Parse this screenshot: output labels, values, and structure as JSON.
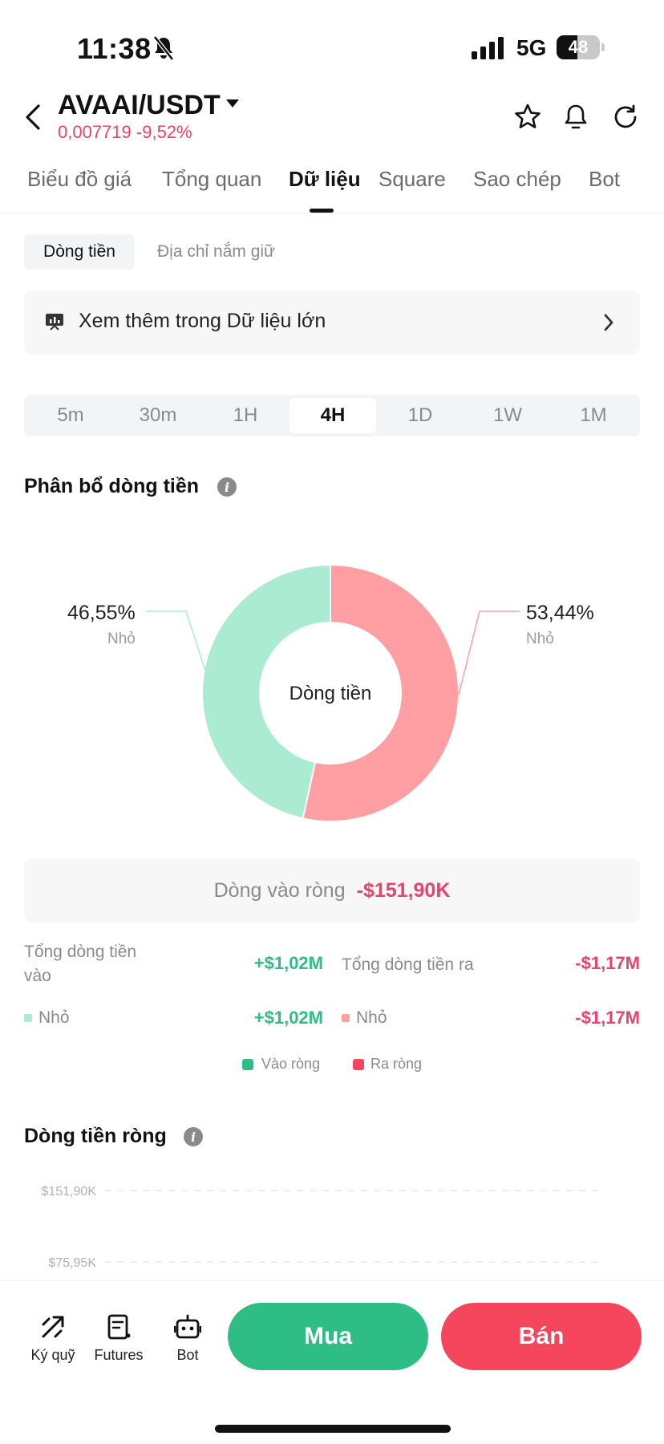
{
  "status_bar": {
    "time": "11:38",
    "network": "5G",
    "battery": "48"
  },
  "header": {
    "pair": "AVAAI/USDT",
    "price": "0,007719",
    "change": "-9,52%"
  },
  "tabs": [
    {
      "label": "Biểu đồ giá"
    },
    {
      "label": "Tổng quan"
    },
    {
      "label": "Dữ liệu"
    },
    {
      "label": "Square"
    },
    {
      "label": "Sao chép"
    },
    {
      "label": "Bot"
    }
  ],
  "sub_tabs": {
    "active": "Dòng tiền",
    "other": "Địa chỉ nắm giữ"
  },
  "banner": {
    "text": "Xem thêm trong Dữ liệu lớn"
  },
  "intervals": [
    "5m",
    "30m",
    "1H",
    "4H",
    "1D",
    "1W",
    "1M"
  ],
  "selected_interval": "4H",
  "distribution": {
    "title": "Phân bổ dòng tiền",
    "center_label": "Dòng tiền",
    "left_pct": "46,55%",
    "left_sub": "Nhỏ",
    "right_pct": "53,44%",
    "right_sub": "Nhỏ",
    "inflow_fraction": 0.4655,
    "outflow_fraction": 0.5344,
    "colors": {
      "inflow": "#abebd2",
      "outflow": "#ff9fa3"
    }
  },
  "net_inflow": {
    "label": "Dòng vào ròng",
    "value": "-$151,90K"
  },
  "flows": {
    "total_in_label": "Tổng dòng tiền vào",
    "total_in_value": "+$1,02M",
    "total_out_label": "Tổng dòng tiền ra",
    "total_out_value": "-$1,17M",
    "small_in_label": "Nhỏ",
    "small_in_value": "+$1,02M",
    "small_out_label": "Nhỏ",
    "small_out_value": "-$1,17M"
  },
  "legend": {
    "in": "Vào ròng",
    "out": "Ra ròng",
    "in_color": "#2ebd85",
    "out_color": "#f6465d"
  },
  "net_flow_chart": {
    "title": "Dòng tiền ròng",
    "y_ticks": [
      "$151,90K",
      "$75,95K"
    ]
  },
  "bottom_bar": {
    "margin": "Ký quỹ",
    "futures": "Futures",
    "bot": "Bot",
    "buy": "Mua",
    "sell": "Bán"
  }
}
